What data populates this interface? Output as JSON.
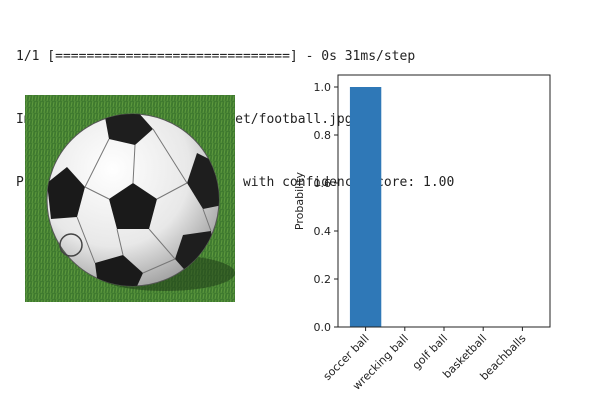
{
  "console": {
    "progress_line": "1/1 [==============================] - 0s 31ms/step",
    "image_line": "Image: ./drive/MyDrive/dataset/football.jpg",
    "prediction_line": "Predicted class: soccer ball with confidence score: 1.00"
  },
  "photo": {
    "subject": "soccer-ball-photo"
  },
  "colors": {
    "bar": "#2f78b7",
    "grass": "#3f7a2f"
  },
  "chart_data": {
    "type": "bar",
    "title": "",
    "xlabel": "",
    "ylabel": "Probability",
    "categories": [
      "soccer ball",
      "wrecking ball",
      "golf ball",
      "basketball",
      "beachballs"
    ],
    "values": [
      1.0,
      0.0,
      0.0,
      0.0,
      0.0
    ],
    "ylim": [
      0,
      1.05
    ],
    "yticks": [
      0.0,
      0.2,
      0.4,
      0.6,
      0.8,
      1.0
    ],
    "ytick_labels": [
      "0.0",
      "0.2",
      "0.4",
      "0.6",
      "0.8",
      "1.0"
    ],
    "grid": false,
    "legend": "none"
  }
}
